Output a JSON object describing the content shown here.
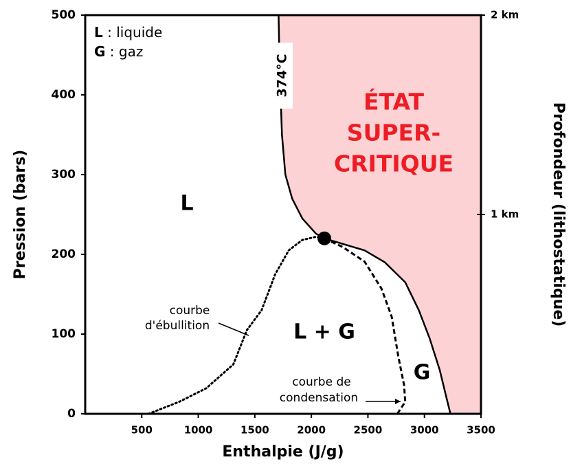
{
  "chart_data": {
    "type": "line",
    "x_label": "Enthalpie (J/g)",
    "y_label": "Pression (bars)",
    "y2_label": "Profondeur (lithostatique)",
    "xlim": [
      0,
      3500
    ],
    "xticks": [
      500,
      1000,
      1500,
      2000,
      2500,
      3000,
      3500
    ],
    "ylim": [
      0,
      500
    ],
    "yticks": [
      0,
      100,
      200,
      300,
      400,
      500
    ],
    "y2lim": [
      0,
      2
    ],
    "y2ticks": [
      {
        "value": 1,
        "label": "1 km"
      },
      {
        "value": 2,
        "label": "2 km"
      }
    ],
    "series": [
      {
        "color": "#000000",
        "dash": "solid",
        "fill": "#fcd2d4",
        "x": [
          1710,
          1720,
          1740,
          1770,
          1830,
          1920,
          2040,
          2115,
          2280,
          2470,
          2650,
          2830,
          2950,
          3045,
          3135,
          3195,
          3230
        ],
        "values": [
          500,
          430,
          350,
          300,
          270,
          245,
          226,
          220,
          213,
          205,
          190,
          165,
          130,
          95,
          55,
          20,
          0
        ]
      },
      {
        "color": "#000000",
        "dash": "dotted",
        "x": [
          560,
          830,
          1070,
          1310,
          1430,
          1560,
          1680,
          1800,
          1920,
          2040,
          2115
        ],
        "values": [
          0,
          15,
          32,
          62,
          105,
          130,
          175,
          205,
          218,
          222,
          220
        ]
      },
      {
        "color": "#000000",
        "dash": "dashed",
        "x": [
          2115,
          2280,
          2470,
          2620,
          2710,
          2770,
          2820,
          2830,
          2760
        ],
        "values": [
          220,
          209,
          191,
          157,
          122,
          71,
          36,
          15,
          0
        ]
      }
    ],
    "critical_point": {
      "x": 2115,
      "y": 220
    },
    "legend": [
      {
        "symbol": "L",
        "text": ": liquide"
      },
      {
        "symbol": "G",
        "text": ": gaz"
      }
    ],
    "annotations": {
      "critical_temperature": "374°C",
      "supercritical": [
        "ÉTAT",
        "SUPER-",
        "CRITIQUE"
      ],
      "liquid": "L",
      "liquid_gas": "L + G",
      "gas": "G",
      "boiling_curve": [
        "courbe",
        "d'ébullition"
      ],
      "condensation_curve": [
        "courbe de",
        "condensation"
      ]
    }
  }
}
